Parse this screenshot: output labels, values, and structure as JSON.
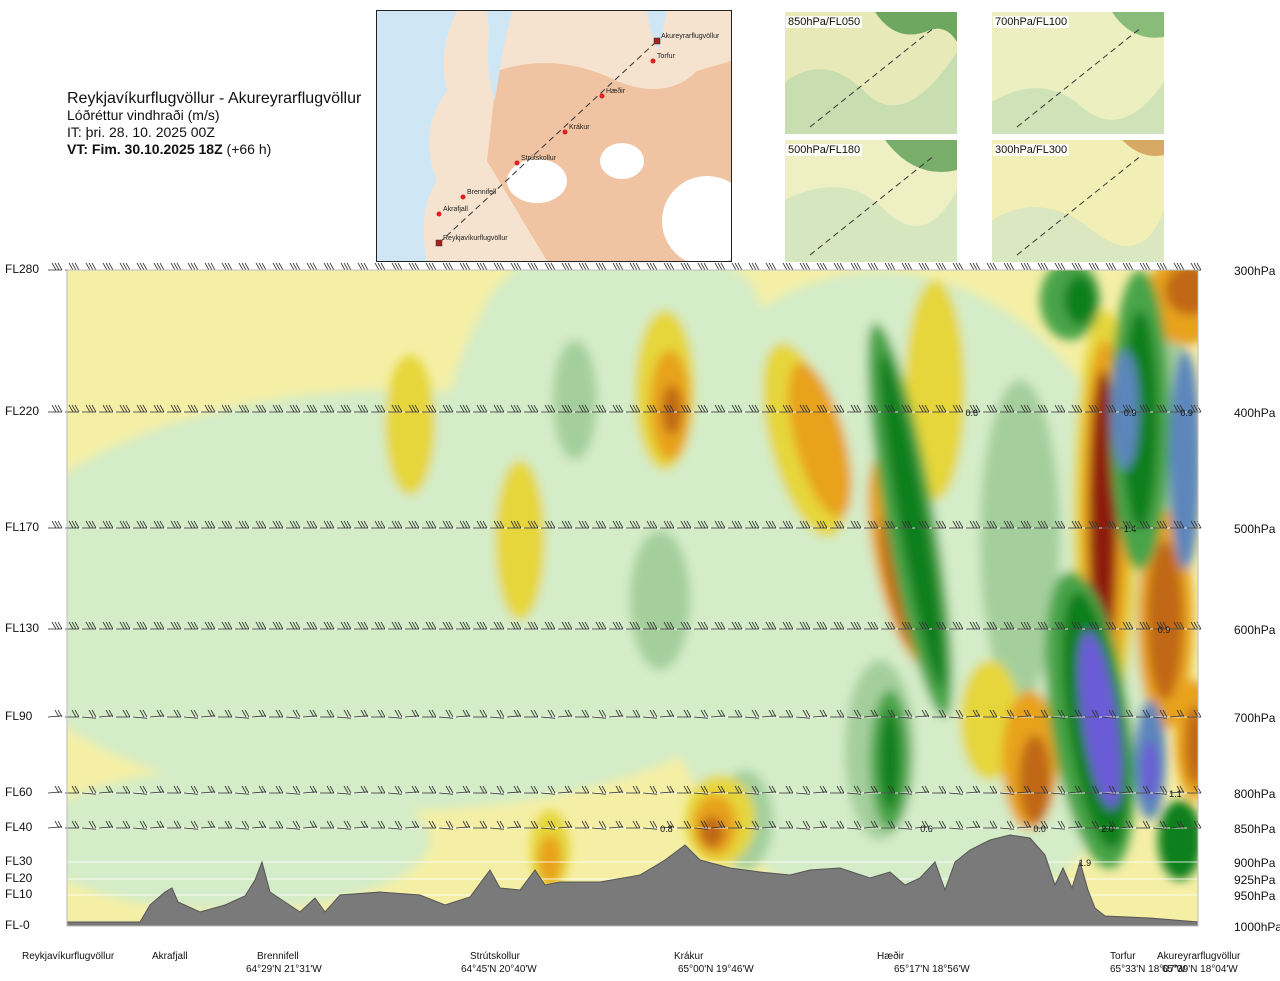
{
  "header": {
    "route": "Reykjavíkurflugvöllur - Akureyrarflugvöllur",
    "variable": "Lóðréttur vindhraði (m/s)",
    "it_line": "IT: þri. 28. 10. 2025 00Z",
    "vt_bold": "VT: Fim. 30.10.2025 18Z",
    "vt_suffix": "(+66 h)"
  },
  "route_map": {
    "places": [
      {
        "name": "Akureyrarflugvöllur",
        "kind": "airport"
      },
      {
        "name": "Torfur",
        "kind": "point"
      },
      {
        "name": "Hæðir",
        "kind": "point"
      },
      {
        "name": "Krákur",
        "kind": "point"
      },
      {
        "name": "Strútskollur",
        "kind": "point"
      },
      {
        "name": "Brennifell",
        "kind": "point"
      },
      {
        "name": "Akrafjall",
        "kind": "point"
      },
      {
        "name": "Reykjavíkurflugvöllur",
        "kind": "airport"
      }
    ]
  },
  "level_maps": [
    {
      "label": "850hPa/FL050"
    },
    {
      "label": "700hPa/FL100"
    },
    {
      "label": "500hPa/FL180"
    },
    {
      "label": "300hPa/FL300"
    }
  ],
  "chart_data": {
    "type": "heatmap",
    "title": "Lóðréttur vindhraði (m/s)",
    "left_axis_labels": [
      "FL280",
      "FL220",
      "FL170",
      "FL130",
      "FL90",
      "FL60",
      "FL40",
      "FL30",
      "FL20",
      "FL10",
      "FL-0"
    ],
    "pressure_levels_hpa": [
      300,
      400,
      500,
      600,
      700,
      800,
      850,
      900,
      925,
      950,
      1000
    ],
    "right_axis_labels": [
      "300hPa",
      "400hPa",
      "500hPa",
      "600hPa",
      "700hPa",
      "800hPa",
      "850hPa",
      "900hPa",
      "925hPa",
      "950hPa",
      "1000hPa"
    ],
    "barb_levels_hpa": [
      300,
      400,
      500,
      600,
      700,
      800,
      850
    ],
    "colors": {
      "weak_up": "#f5efa6",
      "mid_up": "#e6d63a",
      "strong_up": "#e8a21f",
      "stronger_up": "#c06814",
      "strongest_up": "#8e1c10",
      "weak_down": "#d4ecc8",
      "mid_down": "#a4cf9c",
      "strong_down": "#49a44a",
      "stronger_down": "#0f7f1e",
      "blue_down": "#5c86bc",
      "violet_down": "#6a5cd6",
      "terrain": "#7a7a7a"
    },
    "contour_labels": [
      {
        "text": "0.6",
        "pos": 0.8,
        "p": 400
      },
      {
        "text": "0.9",
        "pos": 0.94,
        "p": 400
      },
      {
        "text": "0.9",
        "pos": 0.99,
        "p": 400
      },
      {
        "text": "1.4",
        "pos": 0.94,
        "p": 500
      },
      {
        "text": "0.9",
        "pos": 0.97,
        "p": 600
      },
      {
        "text": "0.8",
        "pos": 0.53,
        "p": 850
      },
      {
        "text": "0.6",
        "pos": 0.76,
        "p": 850
      },
      {
        "text": "0.0",
        "pos": 0.86,
        "p": 850
      },
      {
        "text": "2.0",
        "pos": 0.92,
        "p": 850
      },
      {
        "text": "1.1",
        "pos": 0.98,
        "p": 800
      },
      {
        "text": "1.9",
        "pos": 0.9,
        "p": 900
      }
    ],
    "locations": [
      {
        "name": "Reykjavíkurflugvöllur",
        "coord": ""
      },
      {
        "name": "Akrafjall",
        "coord": ""
      },
      {
        "name": "Brennifell",
        "coord": "64°29'N 21°31'W"
      },
      {
        "name": "Strútskollur",
        "coord": "64°45'N 20°40'W"
      },
      {
        "name": "Krákur",
        "coord": "65°00'N 19°46'W"
      },
      {
        "name": "Hæðir",
        "coord": "65°17'N 18°56'W"
      },
      {
        "name": "Torfur",
        "coord": "65°33'N 18°07'W"
      },
      {
        "name": "Akureyrarflugvöllur",
        "coord": "65°39'N 18°04'W"
      }
    ]
  }
}
